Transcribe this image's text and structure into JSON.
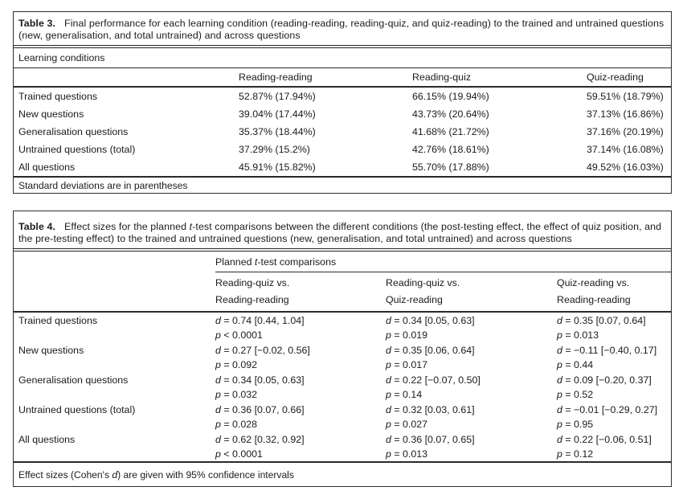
{
  "table3": {
    "caption_label": "Table 3.",
    "caption_text": "Final performance for each learning condition (reading-reading, reading-quiz, and quiz-reading) to the trained and untrained questions (new, generalisation, and total untrained) and across questions",
    "group_header": "Learning conditions",
    "columns": [
      "Reading-reading",
      "Reading-quiz",
      "Quiz-reading"
    ],
    "rows": [
      {
        "label": "Trained questions",
        "values": [
          "52.87% (17.94%)",
          "66.15% (19.94%)",
          "59.51% (18.79%)"
        ]
      },
      {
        "label": "New questions",
        "values": [
          "39.04% (17.44%)",
          "43.73% (20.64%)",
          "37.13% (16.86%)"
        ]
      },
      {
        "label": "Generalisation questions",
        "values": [
          "35.37% (18.44%)",
          "41.68% (21.72%)",
          "37.16% (20.19%)"
        ]
      },
      {
        "label": "Untrained questions (total)",
        "values": [
          "37.29% (15.2%)",
          "42.76% (18.61%)",
          "37.14% (16.08%)"
        ]
      },
      {
        "label": "All questions",
        "values": [
          "45.91% (15.82%)",
          "55.70% (17.88%)",
          "49.52% (16.03%)"
        ]
      }
    ],
    "footnote": "Standard deviations are in parentheses"
  },
  "table4": {
    "caption_label": "Table 4.",
    "caption_pre": "Effect sizes for the planned ",
    "caption_italic": "t",
    "caption_post": "-test comparisons between the different conditions (the post-testing effect, the effect of quiz position, and the pre-testing effect) to the trained and untrained questions (new, generalisation, and total untrained) and across questions",
    "spanner_pre": "Planned ",
    "spanner_italic": "t",
    "spanner_post": "-test comparisons",
    "var_d": "d",
    "var_p": "p",
    "columns": [
      {
        "line1": "Reading-quiz vs.",
        "line2": "Reading-reading"
      },
      {
        "line1": "Reading-quiz vs.",
        "line2": "Quiz-reading"
      },
      {
        "line1": "Quiz-reading vs.",
        "line2": "Reading-reading"
      }
    ],
    "rows": [
      {
        "label": "Trained questions",
        "cells": [
          {
            "d": " = 0.74 [0.44, 1.04]",
            "p": " < 0.0001"
          },
          {
            "d": " = 0.34 [0.05, 0.63]",
            "p": " = 0.019"
          },
          {
            "d": " = 0.35 [0.07, 0.64]",
            "p": " = 0.013"
          }
        ]
      },
      {
        "label": "New questions",
        "cells": [
          {
            "d": " = 0.27 [−0.02, 0.56]",
            "p": " = 0.092"
          },
          {
            "d": " = 0.35 [0.06, 0.64]",
            "p": " = 0.017"
          },
          {
            "d": " = −0.11 [−0.40, 0.17]",
            "p": " = 0.44"
          }
        ]
      },
      {
        "label": "Generalisation questions",
        "cells": [
          {
            "d": " = 0.34 [0.05, 0.63]",
            "p": " = 0.032"
          },
          {
            "d": " = 0.22 [−0.07, 0.50]",
            "p": " = 0.14"
          },
          {
            "d": " = 0.09 [−0.20, 0.37]",
            "p": " = 0.52"
          }
        ]
      },
      {
        "label": "Untrained questions (total)",
        "cells": [
          {
            "d": " = 0.36 [0.07, 0.66]",
            "p": " = 0.028"
          },
          {
            "d": " = 0.32 [0.03, 0.61]",
            "p": " = 0.027"
          },
          {
            "d": " = −0.01 [−0.29, 0.27]",
            "p": " = 0.95"
          }
        ]
      },
      {
        "label": "All questions",
        "cells": [
          {
            "d": " = 0.62 [0.32, 0.92]",
            "p": " < 0.0001"
          },
          {
            "d": " = 0.36 [0.07, 0.65]",
            "p": " = 0.013"
          },
          {
            "d": " = 0.22 [−0.06, 0.51]",
            "p": " = 0.12"
          }
        ]
      }
    ],
    "footnote_pre": "Effect sizes (Cohen's ",
    "footnote_italic": "d",
    "footnote_post": ") are given with 95% confidence intervals"
  }
}
